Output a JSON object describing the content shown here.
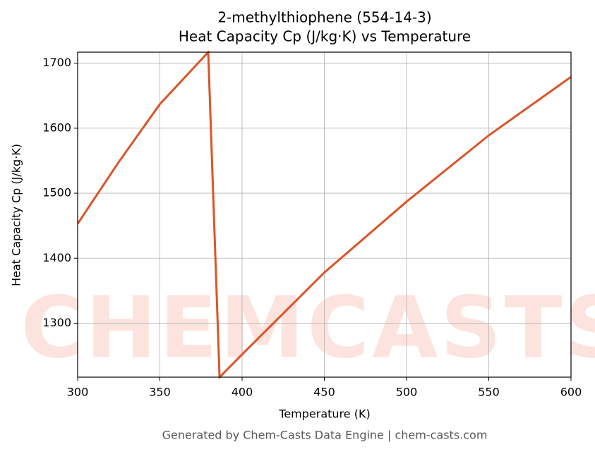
{
  "chart_data": {
    "type": "line",
    "title": "2-methylthiophene (554-14-3)",
    "subtitle": "Heat Capacity Cp (J/kg·K) vs Temperature",
    "x_label": "Temperature (K)",
    "y_label": "Heat Capacity Cp (J/kg·K)",
    "footer": "Generated by Chem-Casts Data Engine | chem-casts.com",
    "watermark": "CHEMCASTS",
    "x": [
      300,
      325,
      350,
      379.4,
      386.3,
      400,
      450,
      500,
      550,
      600
    ],
    "series": [
      {
        "name": "Heat Capacity Cp",
        "color": "#dc5428",
        "values": [
          1453,
          1548,
          1637,
          1717,
          1217,
          1252,
          1378,
          1487,
          1589,
          1679
        ]
      }
    ],
    "xlim": [
      300,
      600
    ],
    "xticks": [
      300,
      350,
      400,
      450,
      500,
      550,
      600
    ],
    "ylim": [
      1217,
      1717
    ],
    "yticks": [
      1300,
      1400,
      1500,
      1600,
      1700
    ],
    "grid": true
  }
}
